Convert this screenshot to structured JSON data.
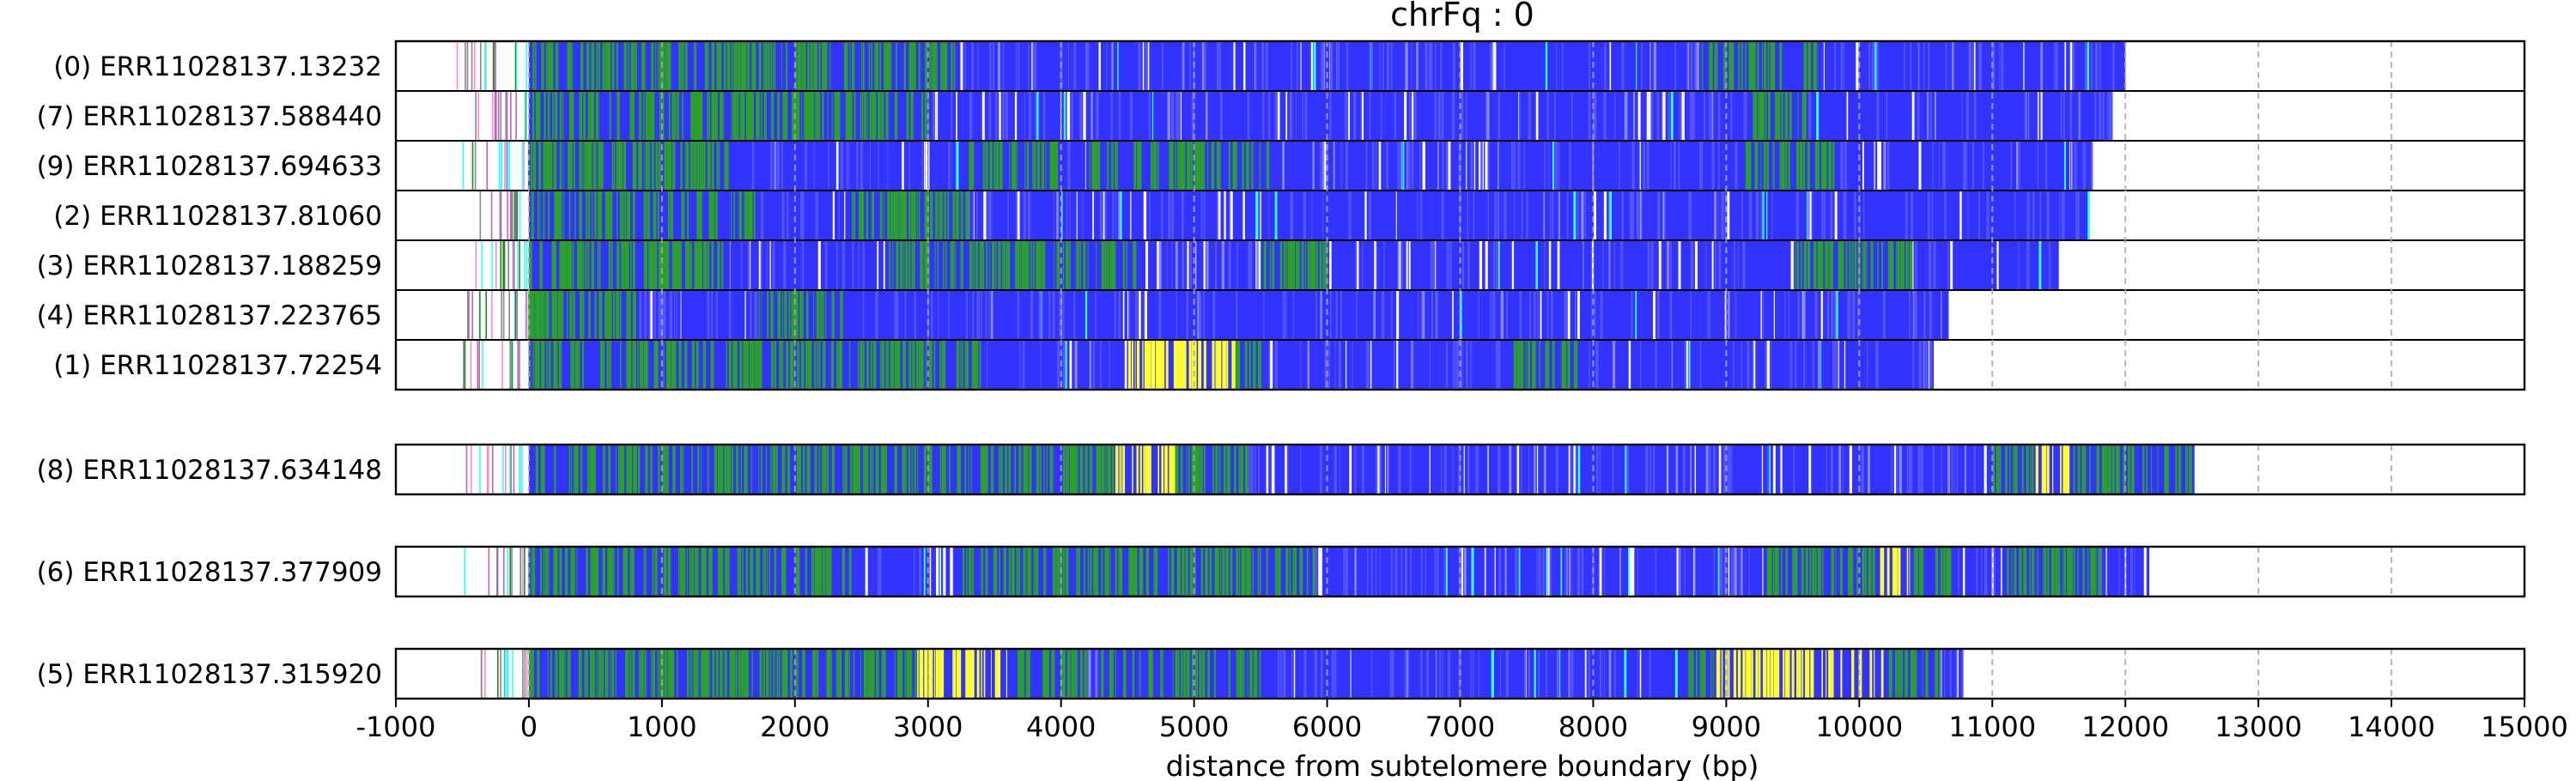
{
  "chart_data": {
    "type": "read-track-plot",
    "title": "chrFq : 0",
    "xlabel": "distance from subtelomere boundary (bp)",
    "xlim": [
      -1000,
      15000
    ],
    "x_ticks": [
      "-1000",
      "0",
      "1000",
      "2000",
      "3000",
      "4000",
      "5000",
      "6000",
      "7000",
      "8000",
      "9000",
      "10000",
      "11000",
      "12000",
      "13000",
      "14000",
      "15000"
    ],
    "grid": "vertical dashed lines every 1000 bp",
    "colors": {
      "base": "#3333ff",
      "green": "#2ca02c",
      "yellow": "#ffff33",
      "cyan": "#33ffff",
      "white": "#ffffff",
      "pink": "#ff88cc",
      "darkgreen": "#228822",
      "frame": "#000000",
      "grid": "#aaaaaa"
    },
    "groups": [
      {
        "reads": [
          {
            "label": "(0) ERR11028137.13232",
            "start": -700,
            "end": 12000,
            "green": [
              [
                0,
                3200
              ],
              [
                8800,
                9700
              ]
            ],
            "yellow": [],
            "white": 0.25
          },
          {
            "label": "(7) ERR11028137.588440",
            "start": -500,
            "end": 11900,
            "green": [
              [
                0,
                3000
              ],
              [
                9200,
                9600
              ]
            ],
            "yellow": [],
            "white": 0.2
          },
          {
            "label": "(9) ERR11028137.694633",
            "start": -500,
            "end": 11750,
            "green": [
              [
                0,
                1500
              ],
              [
                3300,
                4000
              ],
              [
                4200,
                5600
              ],
              [
                9100,
                9800
              ]
            ],
            "yellow": [],
            "white": 0.25
          },
          {
            "label": "(2) ERR11028137.81060",
            "start": -500,
            "end": 11720,
            "green": [
              [
                0,
                1700
              ],
              [
                2400,
                3300
              ]
            ],
            "yellow": [],
            "white": 0.2
          },
          {
            "label": "(3) ERR11028137.188259",
            "start": -500,
            "end": 11500,
            "green": [
              [
                0,
                1500
              ],
              [
                2700,
                4600
              ],
              [
                5500,
                6000
              ],
              [
                9500,
                10400
              ]
            ],
            "yellow": [],
            "white": 0.35
          },
          {
            "label": "(4) ERR11028137.223765",
            "start": -500,
            "end": 10680,
            "green": [
              [
                0,
                800
              ],
              [
                1700,
                2400
              ]
            ],
            "yellow": [],
            "white": 0.2
          },
          {
            "label": "(1) ERR11028137.72254",
            "start": -500,
            "end": 10560,
            "green": [
              [
                0,
                3400
              ],
              [
                4800,
                5500
              ],
              [
                7400,
                7900
              ]
            ],
            "yellow": [
              [
                4500,
                5300
              ]
            ],
            "white": 0.2
          }
        ]
      },
      {
        "reads": [
          {
            "label": "(8) ERR11028137.634148",
            "start": -500,
            "end": 12520,
            "green": [
              [
                0,
                3600
              ],
              [
                3600,
                5400
              ],
              [
                11000,
                12500
              ]
            ],
            "yellow": [
              [
                4400,
                4850
              ],
              [
                11300,
                11600
              ]
            ],
            "white": 0.25
          }
        ]
      },
      {
        "reads": [
          {
            "label": "(6) ERR11028137.377909",
            "start": -500,
            "end": 12180,
            "green": [
              [
                0,
                2500
              ],
              [
                3200,
                5900
              ],
              [
                9300,
                10700
              ],
              [
                11100,
                11800
              ]
            ],
            "yellow": [
              [
                10100,
                10400
              ]
            ],
            "white": 0.45
          }
        ]
      },
      {
        "reads": [
          {
            "label": "(5) ERR11028137.315920",
            "start": -500,
            "end": 10780,
            "green": [
              [
                0,
                2900
              ],
              [
                2900,
                4200
              ],
              [
                4300,
                5500
              ],
              [
                8700,
                10600
              ]
            ],
            "yellow": [
              [
                2900,
                3600
              ],
              [
                8900,
                10200
              ]
            ],
            "white": 0.15
          }
        ]
      }
    ]
  }
}
